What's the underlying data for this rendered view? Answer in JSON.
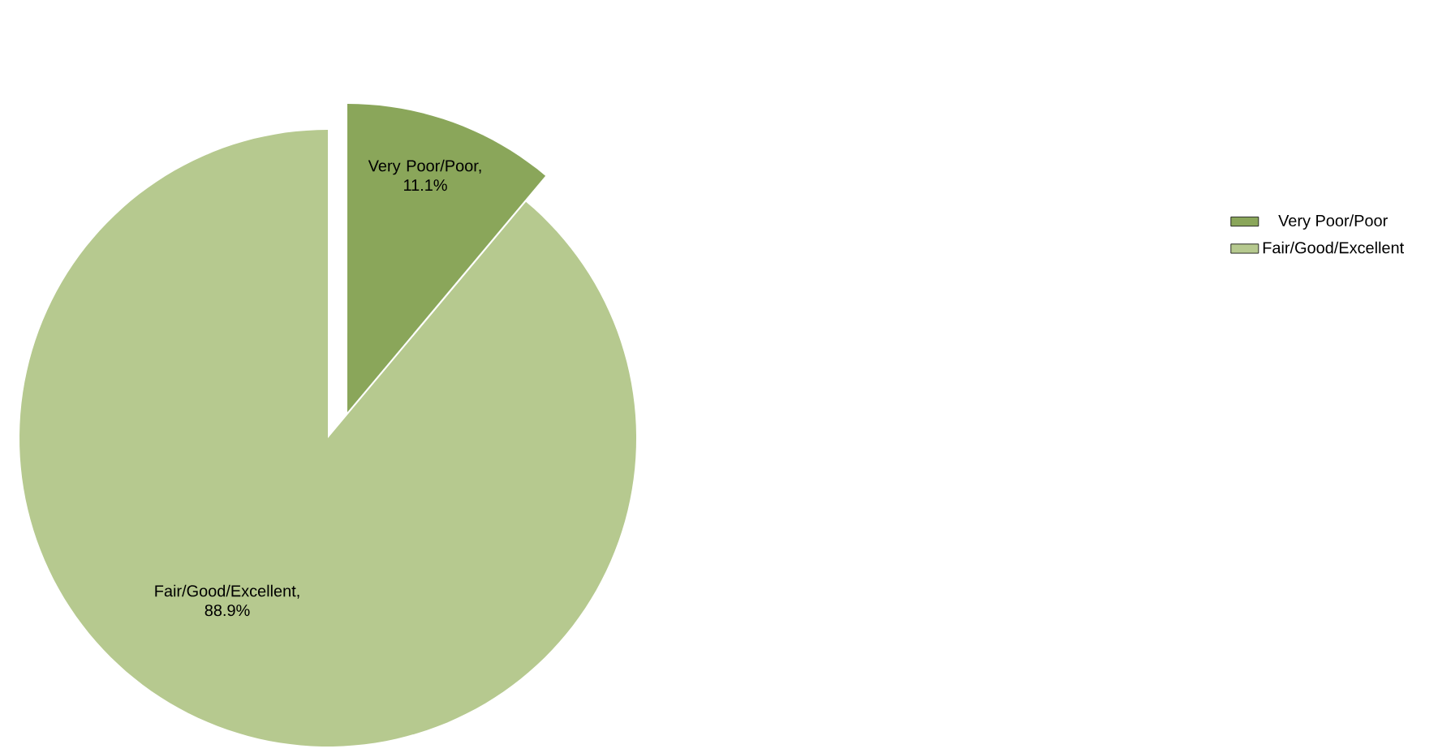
{
  "chart_data": {
    "type": "pie",
    "categories": [
      "Very Poor/Poor",
      "Fair/Good/Excellent"
    ],
    "values": [
      11.1,
      88.9
    ],
    "colors": [
      "#8aa65a",
      "#b6c98f"
    ],
    "value_labels": [
      "Very Poor/Poor, 11.1%",
      "Fair/Good/Excellent, 88.9%"
    ],
    "legend": "right"
  }
}
